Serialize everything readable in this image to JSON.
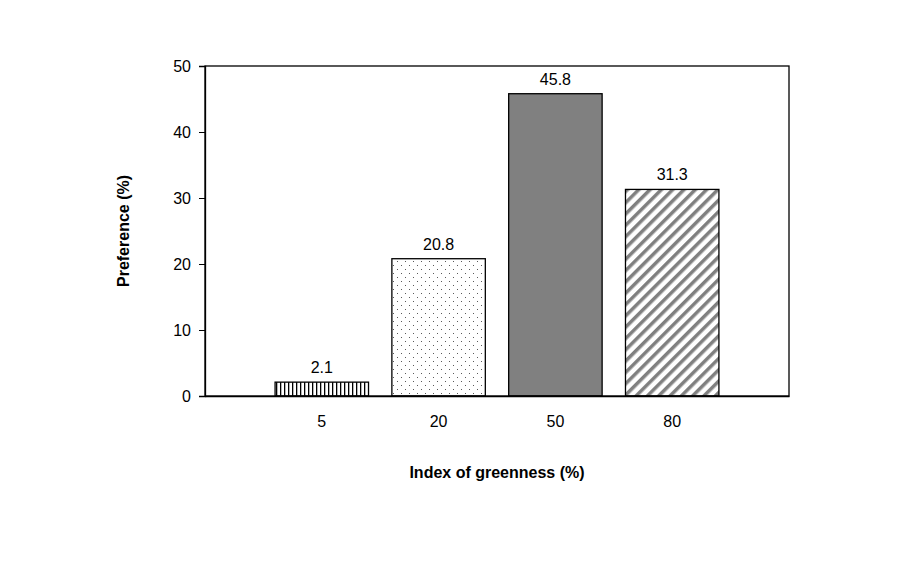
{
  "chart_data": {
    "type": "bar",
    "x_label": "Index of greenness (%)",
    "y_label": "Preference (%)",
    "categories": [
      "5",
      "20",
      "50",
      "80"
    ],
    "values": [
      2.1,
      20.8,
      45.8,
      31.3
    ],
    "colors": [
      "#000000",
      "#595959",
      "#808080",
      "#808080"
    ],
    "ylim": [
      0,
      50
    ],
    "yticks": [
      0,
      10,
      20,
      30,
      40,
      50
    ],
    "grid": false,
    "data_labels": true
  }
}
